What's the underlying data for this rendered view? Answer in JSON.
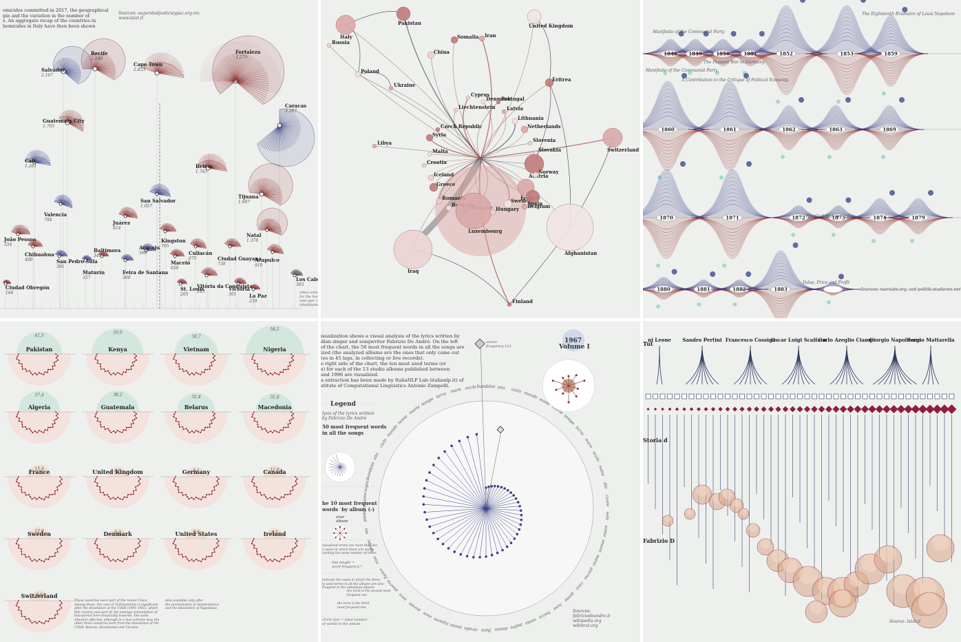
{
  "panels": {
    "p1": {
      "intro": "omicides committed in 2017, the geographical\ngin and the variation in the number of\ns. An aggregate recap of the countries in\nhomicides in Italy have then been shown",
      "source": "Sources: seguridadjusticiaypaz.org.mx\nwww.istat.it",
      "cities": [
        {
          "name": "Salvador",
          "value": "2.167"
        },
        {
          "name": "Recife",
          "value": "2.180"
        },
        {
          "name": "Cape Town",
          "value": "2.853"
        },
        {
          "name": "Fortaleza",
          "value": "3.270"
        },
        {
          "name": "Caracas",
          "value": "3.387"
        },
        {
          "name": "Guatemala City",
          "value": "1.705"
        },
        {
          "name": "Cali",
          "value": "1.261"
        },
        {
          "name": "Belém",
          "value": "1.743"
        },
        {
          "name": "Valencia",
          "value": "784"
        },
        {
          "name": "San Salvador",
          "value": "1.057"
        },
        {
          "name": "Juárez",
          "value": "814"
        },
        {
          "name": "Tijuana",
          "value": "1.897"
        },
        {
          "name": "Natal",
          "value": "1.378"
        },
        {
          "name": "João Pessoa",
          "value": "554"
        },
        {
          "name": "Chihuahua",
          "value": "490"
        },
        {
          "name": "San Pedro Sula",
          "value": "391"
        },
        {
          "name": "Maturín",
          "value": "337"
        },
        {
          "name": "Baltimora",
          "value": "341"
        },
        {
          "name": "Feira de Santana",
          "value": "369"
        },
        {
          "name": "Aracaju",
          "value": "560"
        },
        {
          "name": "Kingston",
          "value": "705"
        },
        {
          "name": "Maceió",
          "value": "658"
        },
        {
          "name": "Culiacán",
          "value": "675"
        },
        {
          "name": "Vitória da Conquista",
          "value": "243"
        },
        {
          "name": "Ciudad Guayana",
          "value": "738"
        },
        {
          "name": "Victoria",
          "value": "301"
        },
        {
          "name": "La Paz",
          "value": "239"
        },
        {
          "name": "Acapulco",
          "value": "910"
        },
        {
          "name": "Los Cabos",
          "value": "365"
        },
        {
          "name": "Ciudad Obregón",
          "value": "166"
        },
        {
          "name": "St. Louis",
          "value": "205"
        }
      ],
      "note": "cities ordered\nfor the homicide\nrate (per 100.000\ninhabitants)"
    },
    "p2": {
      "nodes": [
        "Pakistan",
        "Italy",
        "Russia",
        "Poland",
        "Somalia",
        "Iran",
        "China",
        "United Kingdom",
        "Eritrea",
        "Ukraine",
        "Cyprus",
        "Denmark",
        "Portugal",
        "Latvia",
        "Liechtenstein",
        "Lithuania",
        "Czech Republic",
        "Netherlands",
        "Slovenia",
        "Malta",
        "Syria",
        "Libya",
        "Croatia",
        "Slovakia",
        "Austria",
        "Switzerland",
        "Iceland",
        "Norway",
        "Greece",
        "France",
        "Romania",
        "Bulgaria",
        "Germany",
        "Luxembourg",
        "Hungary",
        "Sweden",
        "Belgium",
        "Spain",
        "Iraq",
        "Afghanistan",
        "Finland"
      ]
    },
    "p3": {
      "labels": [
        "Manifesto of the Communist Party",
        "The Eighteenth Brumaire of Louis Napoleon",
        "The Peasant War in Germany",
        "Manifesto of the Communist Party",
        "A Contribution to the Critique of Political Economy",
        "The Civil War in France",
        "Value, Price and Profit"
      ],
      "years": [
        "1848",
        "1849",
        "1850",
        "1851",
        "1852",
        "1853",
        "1859",
        "1860",
        "1861",
        "1862",
        "1863",
        "1869",
        "1870",
        "1871",
        "1872",
        "1873",
        "1874",
        "1879",
        "1880",
        "1881",
        "1882",
        "1883"
      ],
      "source": "Sources: marxists.org, zeit-politik-studieren.net"
    },
    "p4": {
      "countries": [
        {
          "name": "Pakistan",
          "value": "41,5"
        },
        {
          "name": "Kenya",
          "value": "50,0"
        },
        {
          "name": "Vietnam",
          "value": "38,7"
        },
        {
          "name": "Nigeria",
          "value": "58,5"
        },
        {
          "name": "Algeria",
          "value": "37,4"
        },
        {
          "name": "Guatemala",
          "value": "38,2"
        },
        {
          "name": "Belarus",
          "value": "32,4"
        },
        {
          "name": "Macedonia",
          "value": "31,8"
        },
        {
          "name": "France",
          "value": "13,4"
        },
        {
          "name": "United Kingdom",
          "value": "8,0"
        },
        {
          "name": "Germany",
          "value": "8,1"
        },
        {
          "name": "Canada",
          "value": "11,0"
        },
        {
          "name": "Sweden",
          "value": "12,6"
        },
        {
          "name": "Denmark",
          "value": "8,9"
        },
        {
          "name": "United States",
          "value": "9,6"
        },
        {
          "name": "Ireland",
          "value": "9,5"
        },
        {
          "name": "Switzerland",
          "value": "8,6"
        }
      ],
      "note1": "These countries were part of the Soviet Union.\nAmong these, the case of Turkmenistan is significant:\nafter the dissolution of the USSR (1991-1992), which\nthis country was part of, the average consumption of\nkilocalories here drastically lowered. The same\nsituation affected, although in a less extreme way, the\nother three countries born from the dissolution of the\nUSSR: Belarus, Kazakhstan and Ukraine.",
      "note2": "data available only after\nthe proclamation of independence\nand the dissolution of Yugoslavia"
    },
    "p5": {
      "intro": "isualization shows a visual analysis of the lyrics written by\ndian singer and songwriter Fabrizio De André. On the left\nof the chart, the 50 most frequent words in all the songs are\nized (the analyzed albums are the ones that only came out\n(es in 45 laps, in collecting or live records).\ne right side of the chart, the ten most used terms (or\ns) for each of the 13 studio albums published between\nand 1996 are visualized.\na extraction has been made by ItaliaNLP Lab (italianlp.it) of\nstitute of Computational Linguistics Antonio Zampolli.",
      "legend_title": "Legend",
      "legend_sub": "lysis of the lyrics written\nby Fabrizio De André",
      "legend_h1": "50 most frequent words\nin all the songs",
      "legend_h2": "he 10 most frequent\nwords  by album (-)",
      "legend_year": "year\nalbum",
      "legend_n1": "visualized terms are more than ten\nn cases in which there are words\ncording the same number of times",
      "legend_n2": "line length =\nword frequency *",
      "legend_n3": "indicate the cases in which the three\nly used terms in all the albums are also\nfrequent in the individual albums",
      "legend_n4": "the term is the second most\nfrequent one",
      "legend_n5": "the term is the third\nmost frequent one",
      "legend_n6": "circle size = total number\nof words in the album",
      "album_year": "1967",
      "album_title": "Volume I",
      "frequency_label": "amore\nfrequency 123",
      "source": "Sources:\nfabriziodeandre.it\nwikipedia.org\nwikitext.org",
      "words": [
        "bambino",
        "vita",
        "cielo",
        "mondo",
        "nome",
        "morte",
        "tempo",
        "terra",
        "mare",
        "occhi",
        "notte",
        "dio",
        "cuore",
        "sole",
        "uomo",
        "amore",
        "mano",
        "giorno",
        "casa",
        "gente",
        "luna",
        "bocca",
        "vento",
        "padre",
        "donna",
        "fiore",
        "strada",
        "paese",
        "signore",
        "voce",
        "parole",
        "sera",
        "guerra",
        "fuoco",
        "viso",
        "tempo",
        "via",
        "piede",
        "canzone",
        "sogno"
      ]
    },
    "p6": {
      "presidents": [
        "ni Leone",
        "Sandro Pertini",
        "Francesco Cossiga",
        "Oscar Luigi Scalfaro",
        "Carlo Azeglio Ciampi",
        "Giorgio Napolitano",
        "Sergio Mattarella"
      ],
      "side_labels": [
        "Tut",
        "Storia d",
        "Fabrizio D"
      ],
      "source": "Source: Istat.it"
    }
  },
  "colors": {
    "blue": "#3a3f86",
    "red": "#8a2b2b",
    "bg": "#eef0ee",
    "teal": "#cfe6dc",
    "pink": "#f3d6d2"
  }
}
